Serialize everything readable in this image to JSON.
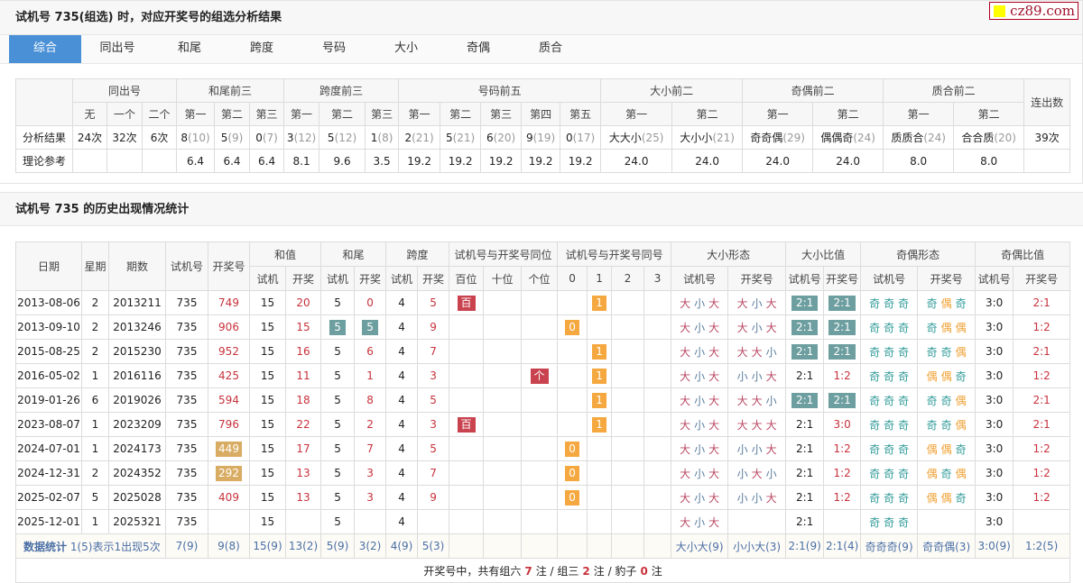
{
  "header": {
    "title": "试机号 735(组选) 时，对应开奖号的组选分析结果",
    "logo_text": "cz89.com"
  },
  "tabs": [
    "综合",
    "同出号",
    "和尾",
    "跨度",
    "号码",
    "大小",
    "奇偶",
    "质合"
  ],
  "analysis": {
    "groups": [
      "同出号",
      "和尾前三",
      "跨度前三",
      "号码前五",
      "大小前二",
      "奇偶前二",
      "质合前二",
      "连出数"
    ],
    "subheaders": [
      "无",
      "一个",
      "二个",
      "第一",
      "第二",
      "第三",
      "第一",
      "第二",
      "第三",
      "第一",
      "第二",
      "第三",
      "第四",
      "第五",
      "第一",
      "第二",
      "第一",
      "第二",
      "第一",
      "第二"
    ],
    "row_result_label": "分析结果",
    "row_theory_label": "理论参考",
    "results": [
      [
        "24次",
        ""
      ],
      [
        "32次",
        ""
      ],
      [
        "6次",
        ""
      ],
      [
        "8",
        "(10)"
      ],
      [
        "5",
        "(9)"
      ],
      [
        "0",
        "(7)"
      ],
      [
        "3",
        "(12)"
      ],
      [
        "5",
        "(12)"
      ],
      [
        "1",
        "(8)"
      ],
      [
        "2",
        "(21)"
      ],
      [
        "5",
        "(21)"
      ],
      [
        "6",
        "(20)"
      ],
      [
        "9",
        "(19)"
      ],
      [
        "0",
        "(17)"
      ],
      [
        "大大小",
        "(25)"
      ],
      [
        "大小小",
        "(21)"
      ],
      [
        "奇奇偶",
        "(29)"
      ],
      [
        "偶偶奇",
        "(24)"
      ],
      [
        "质质合",
        "(24)"
      ],
      [
        "合合质",
        "(20)"
      ],
      [
        "39次",
        ""
      ]
    ],
    "theory": [
      "",
      "",
      "",
      "6.4",
      "6.4",
      "6.4",
      "8.1",
      "9.6",
      "3.5",
      "19.2",
      "19.2",
      "19.2",
      "19.2",
      "19.2",
      "24.0",
      "24.0",
      "24.0",
      "24.0",
      "8.0",
      "8.0",
      ""
    ]
  },
  "history": {
    "title": "试机号 735 的历史出现情况统计",
    "headers": {
      "date": "日期",
      "week": "星期",
      "issue": "期数",
      "test": "试机号",
      "draw": "开奖号",
      "sum": "和值",
      "tail": "和尾",
      "span": "跨度",
      "same_pos": "试机号与开奖号同位",
      "same_num": "试机号与开奖号同号",
      "bs": "大小形态",
      "bsr": "大小比值",
      "oe": "奇偶形态",
      "oer": "奇偶比值"
    },
    "sub": {
      "t": "试机",
      "d": "开奖",
      "bai": "百位",
      "shi": "十位",
      "ge": "个位",
      "n0": "0",
      "n1": "1",
      "n2": "2",
      "n3": "3",
      "tn": "试机号",
      "dn": "开奖号"
    },
    "rows": [
      {
        "date": "2013-08-06",
        "week": "2",
        "issue": "2013211",
        "test": "735",
        "draw": "749",
        "draw_hl": false,
        "sum_t": "15",
        "sum_d": "20",
        "tail_t": "5",
        "tail_d": "0",
        "tail_hl": false,
        "span_t": "4",
        "span_d": "5",
        "pos": "百",
        "pos_col": 0,
        "same": "1",
        "bs_t": "大小大",
        "bs_d": "大小大",
        "bsr_t": "2:1",
        "bsr_d": "2:1",
        "bsr_hl": true,
        "oe_t": "奇奇奇",
        "oe_d": "奇偶奇",
        "oer_t": "3:0",
        "oer_d": "2:1"
      },
      {
        "date": "2013-09-10",
        "week": "2",
        "issue": "2013246",
        "test": "735",
        "draw": "906",
        "draw_hl": false,
        "sum_t": "15",
        "sum_d": "15",
        "tail_t": "5",
        "tail_d": "5",
        "tail_hl": true,
        "span_t": "4",
        "span_d": "9",
        "pos": "",
        "pos_col": -1,
        "same": "0",
        "bs_t": "大小大",
        "bs_d": "大小大",
        "bsr_t": "2:1",
        "bsr_d": "2:1",
        "bsr_hl": true,
        "oe_t": "奇奇奇",
        "oe_d": "奇偶偶",
        "oer_t": "3:0",
        "oer_d": "1:2"
      },
      {
        "date": "2015-08-25",
        "week": "2",
        "issue": "2015230",
        "test": "735",
        "draw": "952",
        "draw_hl": false,
        "sum_t": "15",
        "sum_d": "16",
        "tail_t": "5",
        "tail_d": "6",
        "tail_hl": false,
        "span_t": "4",
        "span_d": "7",
        "pos": "",
        "pos_col": -1,
        "same": "1",
        "bs_t": "大小大",
        "bs_d": "大大小",
        "bsr_t": "2:1",
        "bsr_d": "2:1",
        "bsr_hl": true,
        "oe_t": "奇奇奇",
        "oe_d": "奇奇偶",
        "oer_t": "3:0",
        "oer_d": "2:1"
      },
      {
        "date": "2016-05-02",
        "week": "1",
        "issue": "2016116",
        "test": "735",
        "draw": "425",
        "draw_hl": false,
        "sum_t": "15",
        "sum_d": "11",
        "tail_t": "5",
        "tail_d": "1",
        "tail_hl": false,
        "span_t": "4",
        "span_d": "3",
        "pos": "个",
        "pos_col": 2,
        "same": "1",
        "bs_t": "大小大",
        "bs_d": "小小大",
        "bsr_t": "2:1",
        "bsr_d": "1:2",
        "bsr_hl": false,
        "oe_t": "奇奇奇",
        "oe_d": "偶偶奇",
        "oer_t": "3:0",
        "oer_d": "1:2"
      },
      {
        "date": "2019-01-26",
        "week": "6",
        "issue": "2019026",
        "test": "735",
        "draw": "594",
        "draw_hl": false,
        "sum_t": "15",
        "sum_d": "18",
        "tail_t": "5",
        "tail_d": "8",
        "tail_hl": false,
        "span_t": "4",
        "span_d": "5",
        "pos": "",
        "pos_col": -1,
        "same": "1",
        "bs_t": "大小大",
        "bs_d": "大大小",
        "bsr_t": "2:1",
        "bsr_d": "2:1",
        "bsr_hl": true,
        "oe_t": "奇奇奇",
        "oe_d": "奇奇偶",
        "oer_t": "3:0",
        "oer_d": "2:1"
      },
      {
        "date": "2023-08-07",
        "week": "1",
        "issue": "2023209",
        "test": "735",
        "draw": "796",
        "draw_hl": false,
        "sum_t": "15",
        "sum_d": "22",
        "tail_t": "5",
        "tail_d": "2",
        "tail_hl": false,
        "span_t": "4",
        "span_d": "3",
        "pos": "百",
        "pos_col": 0,
        "same": "1",
        "bs_t": "大小大",
        "bs_d": "大大大",
        "bsr_t": "2:1",
        "bsr_d": "3:0",
        "bsr_hl": false,
        "oe_t": "奇奇奇",
        "oe_d": "奇奇偶",
        "oer_t": "3:0",
        "oer_d": "2:1"
      },
      {
        "date": "2024-07-01",
        "week": "1",
        "issue": "2024173",
        "test": "735",
        "draw": "449",
        "draw_hl": true,
        "sum_t": "15",
        "sum_d": "17",
        "tail_t": "5",
        "tail_d": "7",
        "tail_hl": false,
        "span_t": "4",
        "span_d": "5",
        "pos": "",
        "pos_col": -1,
        "same": "0",
        "bs_t": "大小大",
        "bs_d": "小小大",
        "bsr_t": "2:1",
        "bsr_d": "1:2",
        "bsr_hl": false,
        "oe_t": "奇奇奇",
        "oe_d": "偶偶奇",
        "oer_t": "3:0",
        "oer_d": "1:2"
      },
      {
        "date": "2024-12-31",
        "week": "2",
        "issue": "2024352",
        "test": "735",
        "draw": "292",
        "draw_hl": true,
        "sum_t": "15",
        "sum_d": "13",
        "tail_t": "5",
        "tail_d": "3",
        "tail_hl": false,
        "span_t": "4",
        "span_d": "7",
        "pos": "",
        "pos_col": -1,
        "same": "0",
        "bs_t": "大小大",
        "bs_d": "小大小",
        "bsr_t": "2:1",
        "bsr_d": "1:2",
        "bsr_hl": false,
        "oe_t": "奇奇奇",
        "oe_d": "偶奇偶",
        "oer_t": "3:0",
        "oer_d": "1:2"
      },
      {
        "date": "2025-02-07",
        "week": "5",
        "issue": "2025028",
        "test": "735",
        "draw": "409",
        "draw_hl": false,
        "sum_t": "15",
        "sum_d": "13",
        "tail_t": "5",
        "tail_d": "3",
        "tail_hl": false,
        "span_t": "4",
        "span_d": "9",
        "pos": "",
        "pos_col": -1,
        "same": "0",
        "bs_t": "大小大",
        "bs_d": "小小大",
        "bsr_t": "2:1",
        "bsr_d": "1:2",
        "bsr_hl": false,
        "oe_t": "奇奇奇",
        "oe_d": "偶偶奇",
        "oer_t": "3:0",
        "oer_d": "1:2"
      },
      {
        "date": "2025-12-01",
        "week": "1",
        "issue": "2025321",
        "test": "735",
        "draw": "",
        "draw_hl": false,
        "sum_t": "15",
        "sum_d": "",
        "tail_t": "5",
        "tail_d": "",
        "tail_hl": false,
        "span_t": "4",
        "span_d": "",
        "pos": "",
        "pos_col": -1,
        "same": "",
        "bs_t": "大小大",
        "bs_d": "",
        "bsr_t": "2:1",
        "bsr_d": "",
        "bsr_hl": false,
        "oe_t": "奇奇奇",
        "oe_d": "",
        "oer_t": "3:0",
        "oer_d": ""
      }
    ],
    "stats": {
      "label": "数据统计",
      "note": "1(5)表示1出现5次",
      "values": [
        "7(9)",
        "9(8)",
        "15(9)",
        "13(2)",
        "5(9)",
        "3(2)",
        "4(9)",
        "5(3)",
        "",
        "",
        "",
        "",
        "",
        "",
        "",
        "大小大(9)",
        "小小大(3)",
        "2:1(9)",
        "2:1(4)",
        "奇奇奇(9)",
        "奇奇偶(3)",
        "3:0(9)",
        "1:2(5)"
      ]
    },
    "summary": {
      "prefix": "开奖号中，共有组六",
      "g6": "7",
      "mid1": "注 / 组三",
      "g3": "2",
      "mid2": "注 / 豹子",
      "bz": "0",
      "suffix": "注"
    }
  },
  "colors": {
    "accent": "#4a90d6",
    "big": "#b94a64",
    "small": "#5b7da0",
    "odd": "#2f9a98",
    "even": "#f0a032",
    "hit": "#f5a83f",
    "same_pos": "#c9434f",
    "match": "#6d9ea0",
    "draw_group3": "#d9ac63",
    "red_value": "#c8323c"
  }
}
